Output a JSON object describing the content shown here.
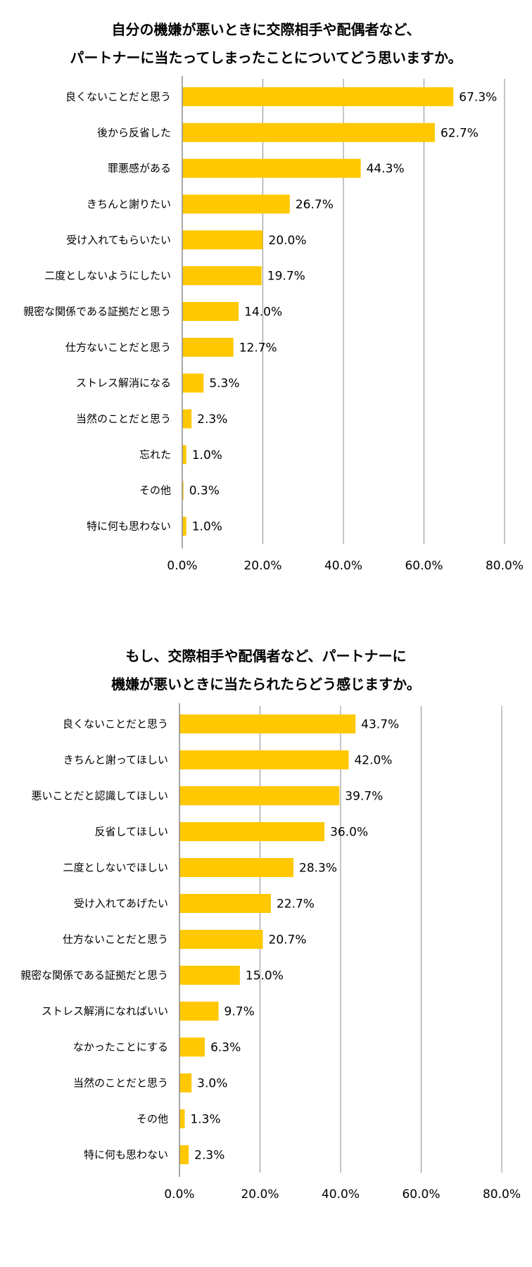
{
  "chart_data": [
    {
      "type": "bar",
      "orientation": "horizontal",
      "title": "自分の機嫌が悪いときに交際相手や配偶者など、パートナーに当たってしまったことについてどう思いますか。",
      "title_lines": [
        "自分の機嫌が悪いときに交際相手や配偶者など、",
        "パートナーに当たってしまったことについてどう思いますか。"
      ],
      "categories": [
        "良くないことだと思う",
        "後から反省した",
        "罪悪感がある",
        "きちんと謝りたい",
        "受け入れてもらいたい",
        "二度としないようにしたい",
        "親密な関係である証拠だと思う",
        "仕方ないことだと思う",
        "ストレス解消になる",
        "当然のことだと思う",
        "忘れた",
        "その他",
        "特に何も思わない"
      ],
      "values": [
        67.3,
        62.7,
        44.3,
        26.7,
        20.0,
        19.7,
        14.0,
        12.7,
        5.3,
        2.3,
        1.0,
        0.3,
        1.0
      ],
      "value_labels": [
        "67.3%",
        "62.7%",
        "44.3%",
        "26.7%",
        "20.0%",
        "19.7%",
        "14.0%",
        "12.7%",
        "5.3%",
        "2.3%",
        "1.0%",
        "0.3%",
        "1.0%"
      ],
      "xlim": [
        0,
        80
      ],
      "x_ticks": [
        "0.0%",
        "20.0%",
        "40.0%",
        "60.0%",
        "80.0%"
      ],
      "bar_color": "#FFC800",
      "grid": true
    },
    {
      "type": "bar",
      "orientation": "horizontal",
      "title": "もし、交際相手や配偶者など、パートナーに機嫌が悪いときに当たられたらどう感じますか。",
      "title_lines": [
        "もし、交際相手や配偶者など、パートナーに",
        "機嫌が悪いときに当たられたらどう感じますか。"
      ],
      "categories": [
        "良くないことだと思う",
        "きちんと謝ってほしい",
        "悪いことだと認識してほしい",
        "反省してほしい",
        "二度としないでほしい",
        "受け入れてあげたい",
        "仕方ないことだと思う",
        "親密な関係である証拠だと思う",
        "ストレス解消になればいい",
        "なかったことにする",
        "当然のことだと思う",
        "その他",
        "特に何も思わない"
      ],
      "values": [
        43.7,
        42.0,
        39.7,
        36.0,
        28.3,
        22.7,
        20.7,
        15.0,
        9.7,
        6.3,
        3.0,
        1.3,
        2.3
      ],
      "value_labels": [
        "43.7%",
        "42.0%",
        "39.7%",
        "36.0%",
        "28.3%",
        "22.7%",
        "20.7%",
        "15.0%",
        "9.7%",
        "6.3%",
        "3.0%",
        "1.3%",
        "2.3%"
      ],
      "xlim": [
        0,
        80
      ],
      "x_ticks": [
        "0.0%",
        "20.0%",
        "40.0%",
        "60.0%",
        "80.0%"
      ],
      "bar_color": "#FFC800",
      "grid": true
    }
  ]
}
